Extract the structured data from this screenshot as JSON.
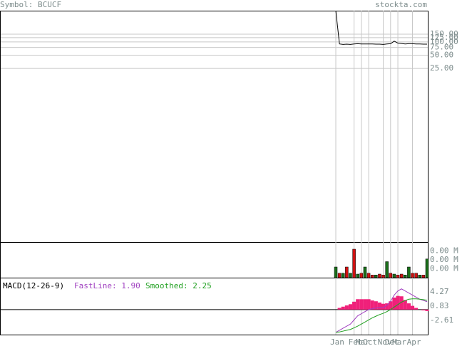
{
  "chart_data": {
    "type": "line",
    "symbol": "Symbol: BCUCF",
    "site": "stockta.com",
    "categories": [
      "Jan",
      null,
      null,
      null,
      null,
      "Feb",
      null,
      "Mar",
      null,
      "Oct",
      null,
      null,
      null,
      "Nov",
      null,
      "Dec",
      null,
      "Mar",
      null,
      null,
      null,
      "Apr",
      null,
      null,
      null,
      null
    ],
    "log_scale": true,
    "grid": true,
    "price": {
      "color": "#000000",
      "values": [
        514,
        90,
        88,
        89,
        88,
        90,
        91,
        90,
        90,
        90,
        90,
        89,
        89,
        88,
        90,
        91,
        104,
        94,
        92,
        90,
        91,
        91,
        90,
        90,
        89,
        89
      ]
    },
    "ylim": [
      0.0028,
      514
    ],
    "yticks": [
      {
        "value": 150,
        "label": "150.00"
      },
      {
        "value": 125,
        "label": "125.00"
      },
      {
        "value": 100,
        "label": "100.00"
      },
      {
        "value": 75,
        "label": "75.00"
      },
      {
        "value": 50,
        "label": "50.00"
      },
      {
        "value": 25,
        "label": "25.00"
      }
    ],
    "volume": {
      "values": [
        0.0012,
        0.0005,
        0.0005,
        0.0012,
        0.0005,
        0.0032,
        0.0004,
        0.0005,
        0.0012,
        0.0005,
        0.0003,
        0.0003,
        0.0004,
        0.0003,
        0.0018,
        0.0005,
        0.0004,
        0.0003,
        0.0004,
        0.0003,
        0.0012,
        0.0005,
        0.0005,
        0.0003,
        0.0003,
        0.0021
      ],
      "colors": [
        "#1a6e1a",
        "#d01010",
        "#1a6e1a",
        "#d01010",
        "#1a6e1a",
        "#d01010",
        "#1a6e1a",
        "#d01010",
        "#1a6e1a",
        "#d01010",
        "#d01010",
        "#1a6e1a",
        "#d01010",
        "#d01010",
        "#1a6e1a",
        "#d01010",
        "#1a6e1a",
        "#d01010",
        "#d01010",
        "#1a6e1a",
        "#1a6e1a",
        "#d01010",
        "#d01010",
        "#1a6e1a",
        "#d01010",
        "#1a6e1a"
      ]
    },
    "vlim": [
      0,
      0.004
    ],
    "vticks": [
      {
        "value": 0.003,
        "label": "0.00 M"
      },
      {
        "value": 0.002,
        "label": "0.00 M"
      },
      {
        "value": 0.001,
        "label": "0.00 M"
      }
    ],
    "macd": {
      "title": "MACD(12-26-9)",
      "fast_label": "FastLine: 1.90",
      "smoothed_label": "Smoothed: 2.25",
      "fast": {
        "color": "#a040c0",
        "values": [
          -5.5,
          -5,
          -4.5,
          -4,
          -3.5,
          -2.5,
          -1.5,
          -1,
          -0.5,
          0,
          0.2,
          0.4,
          0.5,
          0.5,
          1,
          2,
          3.5,
          4.5,
          5,
          4.5,
          4,
          3.5,
          3,
          2.5,
          2.2,
          1.9
        ]
      },
      "smoothed": {
        "color": "#20a020",
        "values": [
          -5.5,
          -5.4,
          -5.2,
          -5,
          -4.8,
          -4.4,
          -4,
          -3.5,
          -3,
          -2.5,
          -2,
          -1.6,
          -1.2,
          -0.9,
          -0.5,
          0,
          0.6,
          1.2,
          1.8,
          2.2,
          2.5,
          2.6,
          2.6,
          2.5,
          2.4,
          2.25
        ]
      },
      "histogram": {
        "color": "#f0207a",
        "values": [
          0,
          0.4,
          0.7,
          1,
          1.3,
          1.9,
          2.5,
          2.5,
          2.5,
          2.5,
          2.2,
          2,
          1.7,
          1.4,
          1.5,
          2,
          2.9,
          3.3,
          3.2,
          2.3,
          1.5,
          0.9,
          0.4,
          0,
          -0.2,
          -0.35
        ]
      },
      "ylim": [
        -6.05,
        7.71
      ],
      "yticks": [
        4.27,
        0.83,
        -2.61
      ]
    }
  }
}
